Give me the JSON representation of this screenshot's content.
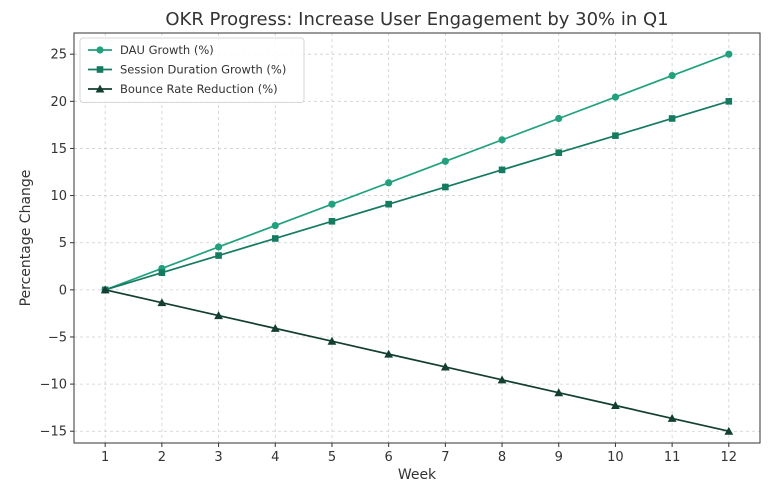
{
  "chart_data": {
    "type": "line",
    "title": "OKR Progress: Increase User Engagement by 30% in Q1",
    "xlabel": "Week",
    "ylabel": "Percentage Change",
    "x": [
      1,
      2,
      3,
      4,
      5,
      6,
      7,
      8,
      9,
      10,
      11,
      12
    ],
    "xlim": [
      0.45,
      12.55
    ],
    "ylim": [
      -16.25,
      27.25
    ],
    "yticks": [
      -15,
      -10,
      -5,
      0,
      5,
      10,
      15,
      20,
      25
    ],
    "grid": true,
    "legend": "upper-left",
    "series": [
      {
        "name": "DAU Growth (%)",
        "color": "#21a17d",
        "marker": "circle",
        "values": [
          0,
          2.27,
          4.55,
          6.82,
          9.09,
          11.36,
          13.64,
          15.91,
          18.18,
          20.45,
          22.73,
          25
        ]
      },
      {
        "name": "Session Duration Growth (%)",
        "color": "#147a60",
        "marker": "square",
        "values": [
          0,
          1.82,
          3.64,
          5.45,
          7.27,
          9.09,
          10.91,
          12.73,
          14.55,
          16.36,
          18.18,
          20
        ]
      },
      {
        "name": "Bounce Rate Reduction (%)",
        "color": "#123f32",
        "marker": "triangle",
        "values": [
          0,
          -1.36,
          -2.73,
          -4.09,
          -5.45,
          -6.82,
          -8.18,
          -9.55,
          -10.91,
          -12.27,
          -13.64,
          -15
        ]
      }
    ]
  }
}
